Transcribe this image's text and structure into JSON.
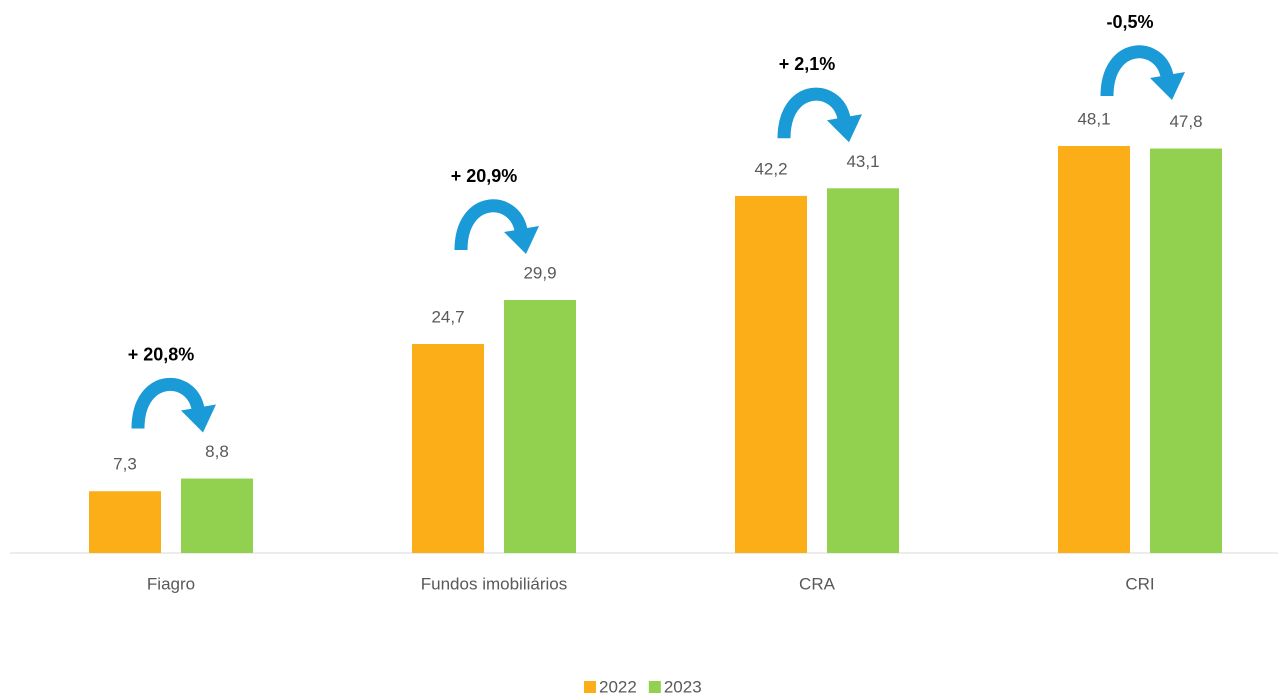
{
  "chart_data": {
    "type": "bar",
    "categories": [
      "Fiagro",
      "Fundos imobiliários",
      "CRA",
      "CRI"
    ],
    "series": [
      {
        "name": "2022",
        "color": "#fbae17",
        "values": [
          7.3,
          24.7,
          42.2,
          48.1
        ],
        "value_labels": [
          "7,3",
          "24,7",
          "42,2",
          "48,1"
        ]
      },
      {
        "name": "2023",
        "color": "#92d050",
        "values": [
          8.8,
          29.9,
          43.1,
          47.8
        ],
        "value_labels": [
          "8,8",
          "29,9",
          "43,1",
          "47,8"
        ]
      }
    ],
    "annotations": [
      "+ 20,8%",
      "+ 20,9%",
      "+ 2,1%",
      "-0,5%"
    ],
    "ylim": [
      0,
      65
    ],
    "legend": "bottom"
  }
}
